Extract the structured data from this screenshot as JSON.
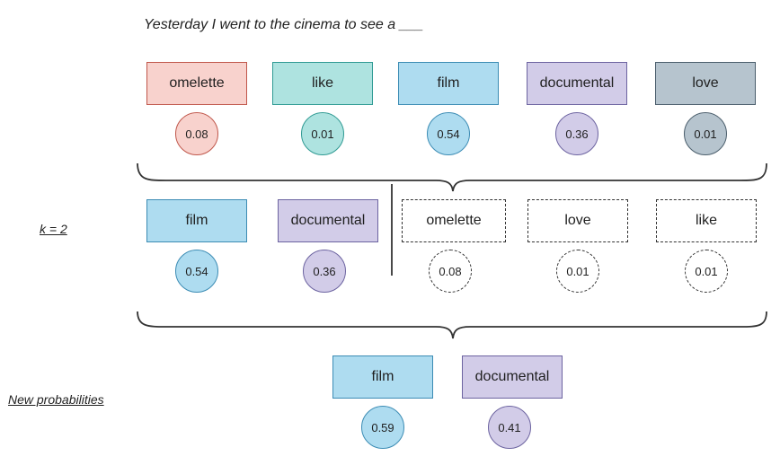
{
  "prompt": "Yesterday I went to the cinema to see a ___",
  "labels": {
    "k": "k = 2",
    "new_probabilities": "New probabilities"
  },
  "row1": [
    {
      "word": "omelette",
      "prob": "0.08",
      "color": "red"
    },
    {
      "word": "like",
      "prob": "0.01",
      "color": "teal"
    },
    {
      "word": "film",
      "prob": "0.54",
      "color": "blue"
    },
    {
      "word": "documental",
      "prob": "0.36",
      "color": "purple"
    },
    {
      "word": "love",
      "prob": "0.01",
      "color": "slate"
    }
  ],
  "row2_kept": [
    {
      "word": "film",
      "prob": "0.54",
      "color": "blue"
    },
    {
      "word": "documental",
      "prob": "0.36",
      "color": "purple"
    }
  ],
  "row2_dropped": [
    {
      "word": "omelette",
      "prob": "0.08"
    },
    {
      "word": "love",
      "prob": "0.01"
    },
    {
      "word": "like",
      "prob": "0.01"
    }
  ],
  "row3": [
    {
      "word": "film",
      "prob": "0.59",
      "color": "blue"
    },
    {
      "word": "documental",
      "prob": "0.41",
      "color": "purple"
    }
  ],
  "colors": {
    "red_fill": "#f8d2cd",
    "teal_fill": "#aee3e0",
    "blue_fill": "#aedcf0",
    "purple_fill": "#d2cce8",
    "slate_fill": "#b6c4ce"
  }
}
